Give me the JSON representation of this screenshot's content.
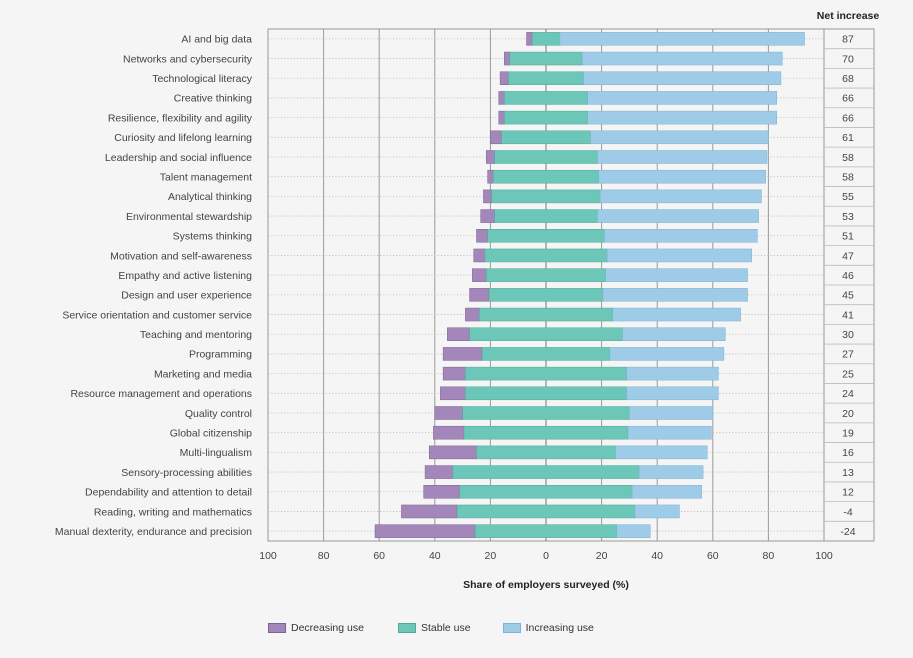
{
  "chart_data": {
    "type": "bar",
    "stacked": "diverging",
    "xlabel": "Share of employers surveyed (%)",
    "xlim": [
      -100,
      100
    ],
    "xticks": [
      "100",
      "80",
      "60",
      "40",
      "20",
      "0",
      "20",
      "40",
      "60",
      "80",
      "100"
    ],
    "net_header": "Net increase",
    "grid": true,
    "legend_position": "bottom",
    "series_names": [
      "Decreasing use",
      "Stable use",
      "Increasing use"
    ],
    "colors": {
      "decreasing": "#a487ba",
      "stable": "#6cc7b9",
      "increasing": "#9ecce8"
    },
    "rows": [
      {
        "label": "AI and big data",
        "decreasing": 2,
        "stable": 10,
        "increasing": 88,
        "net": "87"
      },
      {
        "label": "Networks and cybersecurity",
        "decreasing": 2,
        "stable": 26,
        "increasing": 72,
        "net": "70"
      },
      {
        "label": "Technological literacy",
        "decreasing": 3,
        "stable": 27,
        "increasing": 71,
        "net": "68"
      },
      {
        "label": "Creative thinking",
        "decreasing": 2,
        "stable": 30,
        "increasing": 68,
        "net": "66"
      },
      {
        "label": "Resilience, flexibility and agility",
        "decreasing": 2,
        "stable": 30,
        "increasing": 68,
        "net": "66"
      },
      {
        "label": "Curiosity and lifelong learning",
        "decreasing": 4,
        "stable": 32,
        "increasing": 64,
        "net": "61"
      },
      {
        "label": "Leadership and social influence",
        "decreasing": 3,
        "stable": 37,
        "increasing": 61,
        "net": "58"
      },
      {
        "label": "Talent management",
        "decreasing": 2,
        "stable": 38,
        "increasing": 60,
        "net": "58"
      },
      {
        "label": "Analytical thinking",
        "decreasing": 3,
        "stable": 39,
        "increasing": 58,
        "net": "55"
      },
      {
        "label": "Environmental stewardship",
        "decreasing": 5,
        "stable": 37,
        "increasing": 58,
        "net": "53"
      },
      {
        "label": "Systems thinking",
        "decreasing": 4,
        "stable": 42,
        "increasing": 55,
        "net": "51"
      },
      {
        "label": "Motivation and self-awareness",
        "decreasing": 4,
        "stable": 44,
        "increasing": 52,
        "net": "47"
      },
      {
        "label": "Empathy and active listening",
        "decreasing": 5,
        "stable": 43,
        "increasing": 51,
        "net": "46"
      },
      {
        "label": "Design and user experience",
        "decreasing": 7,
        "stable": 41,
        "increasing": 52,
        "net": "45"
      },
      {
        "label": "Service orientation and customer service",
        "decreasing": 5,
        "stable": 48,
        "increasing": 46,
        "net": "41"
      },
      {
        "label": "Teaching and mentoring",
        "decreasing": 8,
        "stable": 55,
        "increasing": 37,
        "net": "30"
      },
      {
        "label": "Programming",
        "decreasing": 14,
        "stable": 46,
        "increasing": 41,
        "net": "27"
      },
      {
        "label": "Marketing and media",
        "decreasing": 8,
        "stable": 58,
        "increasing": 33,
        "net": "25"
      },
      {
        "label": "Resource management and operations",
        "decreasing": 9,
        "stable": 58,
        "increasing": 33,
        "net": "24"
      },
      {
        "label": "Quality control",
        "decreasing": 10,
        "stable": 60,
        "increasing": 30,
        "net": "20"
      },
      {
        "label": "Global citizenship",
        "decreasing": 11,
        "stable": 59,
        "increasing": 30,
        "net": "19"
      },
      {
        "label": "Multi-lingualism",
        "decreasing": 17,
        "stable": 50,
        "increasing": 33,
        "net": "16"
      },
      {
        "label": "Sensory-processing abilities",
        "decreasing": 10,
        "stable": 67,
        "increasing": 23,
        "net": "13"
      },
      {
        "label": "Dependability and attention to detail",
        "decreasing": 13,
        "stable": 62,
        "increasing": 25,
        "net": "12"
      },
      {
        "label": "Reading, writing and mathematics",
        "decreasing": 20,
        "stable": 64,
        "increasing": 16,
        "net": "-4"
      },
      {
        "label": "Manual dexterity, endurance and precision",
        "decreasing": 36,
        "stable": 51,
        "increasing": 12,
        "net": "-24"
      }
    ]
  }
}
